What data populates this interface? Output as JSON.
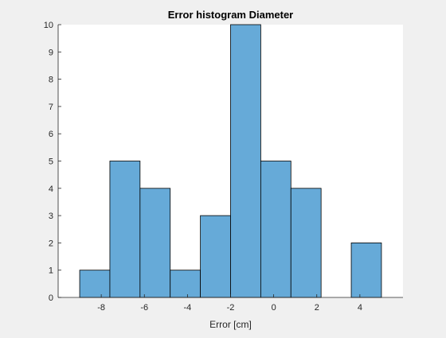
{
  "colors": {
    "background": "#f0f0f0",
    "plot_background": "#ffffff",
    "bar_fill": "#66aad8",
    "bar_stroke": "#000000",
    "axis": "#262626"
  },
  "chart_data": {
    "type": "bar",
    "title": "Error histogram Diameter",
    "xlabel": "Error [cm]",
    "ylabel": "",
    "bin_edges": [
      -9,
      -7.6,
      -6.2,
      -4.8,
      -3.4,
      -2.0,
      -0.6,
      0.8,
      2.2,
      3.6,
      5.0
    ],
    "values": [
      1,
      5,
      4,
      1,
      3,
      10,
      5,
      4,
      0,
      2
    ],
    "xlim": [
      -10,
      6
    ],
    "ylim": [
      0,
      10
    ],
    "xticks": [
      -8,
      -6,
      -4,
      -2,
      0,
      2,
      4
    ],
    "yticks": [
      0,
      1,
      2,
      3,
      4,
      5,
      6,
      7,
      8,
      9,
      10
    ],
    "grid": false,
    "legend": "none"
  }
}
